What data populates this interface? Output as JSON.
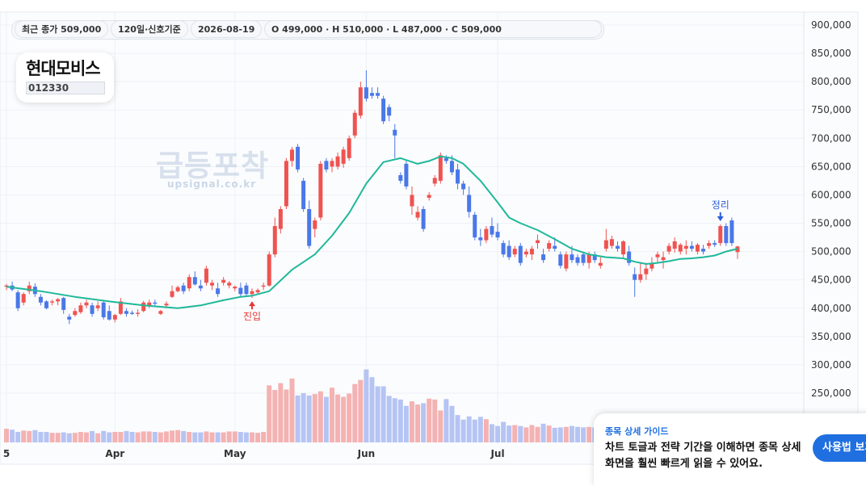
{
  "header": {
    "last_close": "최근 종가 509,000",
    "period": "120일·신호기준",
    "date": "2026-08-19",
    "ohlc": "O 499,000 · H 510,000 · L 487,000 · C 509,000"
  },
  "stock": {
    "name": "현대모비스",
    "code": "012330"
  },
  "watermark": {
    "title": "급등포착",
    "url": "upsignal.co.kr"
  },
  "guide": {
    "title": "종목 상세 가이드",
    "text": "차트 토글과 전략 기간을 이해하면 종목 상세 화면을 훨씬 빠르게 읽을 수 있어요.",
    "button_label": "사용법 보기"
  },
  "colors": {
    "up": "#ef5350",
    "down": "#4a78e8",
    "ma": "#1fb89a",
    "vol_up": "#f4b2b2",
    "vol_down": "#b5c4f3",
    "entry": "#e53935",
    "exit": "#2b5fd9",
    "grid": "#eef1f5"
  },
  "chart_data": {
    "type": "candlestick",
    "y_ticks": [
      250000,
      300000,
      350000,
      400000,
      450000,
      500000,
      550000,
      600000,
      650000,
      700000,
      750000,
      800000,
      850000,
      900000
    ],
    "y_tick_labels": [
      "250,000",
      "300,000",
      "350,000",
      "400,000",
      "450,000",
      "500,000",
      "550,000",
      "600,000",
      "650,000",
      "700,000",
      "750,000",
      "800,000",
      "850,000",
      "900,000"
    ],
    "x_labels": [
      {
        "label": "5",
        "index": 0
      },
      {
        "label": "Apr",
        "index": 19
      },
      {
        "label": "May",
        "index": 40
      },
      {
        "label": "Jun",
        "index": 63
      },
      {
        "label": "Jul",
        "index": 86
      }
    ],
    "candles": [
      [
        438000,
        443000,
        432000,
        440000
      ],
      [
        440000,
        447000,
        430000,
        433000
      ],
      [
        428000,
        432000,
        395000,
        400000
      ],
      [
        410000,
        428000,
        405000,
        425000
      ],
      [
        430000,
        447000,
        425000,
        440000
      ],
      [
        438000,
        444000,
        420000,
        425000
      ],
      [
        420000,
        425000,
        405000,
        410000
      ],
      [
        412000,
        414000,
        398000,
        400000
      ],
      [
        410000,
        415000,
        405000,
        412000
      ],
      [
        412000,
        418000,
        405000,
        416000
      ],
      [
        418000,
        420000,
        390000,
        397000
      ],
      [
        385000,
        390000,
        372000,
        380000
      ],
      [
        388000,
        400000,
        385000,
        395000
      ],
      [
        393000,
        410000,
        390000,
        405000
      ],
      [
        405000,
        415000,
        400000,
        410000
      ],
      [
        405000,
        410000,
        385000,
        390000
      ],
      [
        400000,
        412000,
        395000,
        405000
      ],
      [
        410000,
        412000,
        380000,
        384000
      ],
      [
        395000,
        405000,
        378000,
        380000
      ],
      [
        380000,
        390000,
        375000,
        388000
      ],
      [
        390000,
        418000,
        388000,
        412000
      ],
      [
        395000,
        400000,
        385000,
        390000
      ],
      [
        392000,
        396000,
        388000,
        390000
      ],
      [
        390000,
        398000,
        385000,
        392000
      ],
      [
        395000,
        413000,
        393000,
        410000
      ],
      [
        405000,
        415000,
        400000,
        410000
      ],
      [
        410000,
        415000,
        405000,
        408000
      ],
      [
        390000,
        397000,
        388000,
        395000
      ],
      [
        405000,
        412000,
        400000,
        408000
      ],
      [
        420000,
        440000,
        418000,
        430000
      ],
      [
        430000,
        440000,
        428000,
        437000
      ],
      [
        440000,
        445000,
        425000,
        430000
      ],
      [
        435000,
        460000,
        430000,
        455000
      ],
      [
        455000,
        465000,
        440000,
        442000
      ],
      [
        440000,
        450000,
        430000,
        435000
      ],
      [
        445000,
        475000,
        440000,
        470000
      ],
      [
        440000,
        450000,
        432000,
        445000
      ],
      [
        435000,
        445000,
        420000,
        425000
      ],
      [
        445000,
        455000,
        440000,
        450000
      ],
      [
        440000,
        448000,
        435000,
        445000
      ],
      [
        435000,
        440000,
        430000,
        438000
      ],
      [
        436000,
        445000,
        420000,
        425000
      ],
      [
        440000,
        445000,
        420000,
        425000
      ],
      [
        425000,
        435000,
        418000,
        430000
      ],
      [
        428000,
        435000,
        425000,
        432000
      ],
      [
        438000,
        445000,
        432000,
        440000
      ],
      [
        440000,
        500000,
        438000,
        495000
      ],
      [
        495000,
        560000,
        490000,
        545000
      ],
      [
        540000,
        580000,
        532000,
        575000
      ],
      [
        580000,
        665000,
        575000,
        660000
      ],
      [
        660000,
        685000,
        650000,
        680000
      ],
      [
        685000,
        690000,
        640000,
        645000
      ],
      [
        625000,
        630000,
        570000,
        575000
      ],
      [
        575000,
        590000,
        505000,
        510000
      ],
      [
        540000,
        560000,
        525000,
        555000
      ],
      [
        560000,
        660000,
        555000,
        655000
      ],
      [
        660000,
        665000,
        640000,
        645000
      ],
      [
        650000,
        665000,
        640000,
        660000
      ],
      [
        650000,
        675000,
        645000,
        668000
      ],
      [
        655000,
        685000,
        648000,
        680000
      ],
      [
        665000,
        705000,
        660000,
        700000
      ],
      [
        705000,
        750000,
        700000,
        745000
      ],
      [
        740000,
        800000,
        735000,
        790000
      ],
      [
        790000,
        820000,
        765000,
        770000
      ],
      [
        780000,
        790000,
        770000,
        775000
      ],
      [
        780000,
        790000,
        770000,
        775000
      ],
      [
        770000,
        775000,
        725000,
        730000
      ],
      [
        755000,
        760000,
        730000,
        740000
      ],
      [
        715000,
        725000,
        665000,
        705000
      ],
      [
        635000,
        640000,
        620000,
        625000
      ],
      [
        655000,
        660000,
        610000,
        615000
      ],
      [
        580000,
        615000,
        565000,
        600000
      ],
      [
        560000,
        580000,
        555000,
        570000
      ],
      [
        575000,
        580000,
        535000,
        540000
      ],
      [
        595000,
        605000,
        590000,
        600000
      ],
      [
        620000,
        635000,
        615000,
        630000
      ],
      [
        625000,
        675000,
        620000,
        670000
      ],
      [
        665000,
        670000,
        655000,
        660000
      ],
      [
        660000,
        670000,
        635000,
        640000
      ],
      [
        645000,
        655000,
        610000,
        620000
      ],
      [
        620000,
        625000,
        600000,
        610000
      ],
      [
        600000,
        615000,
        560000,
        570000
      ],
      [
        565000,
        570000,
        520000,
        525000
      ],
      [
        525000,
        540000,
        510000,
        520000
      ],
      [
        520000,
        545000,
        515000,
        540000
      ],
      [
        545000,
        560000,
        525000,
        530000
      ],
      [
        535000,
        550000,
        520000,
        525000
      ],
      [
        515000,
        520000,
        490000,
        495000
      ],
      [
        510000,
        520000,
        485000,
        490000
      ],
      [
        495000,
        510000,
        490000,
        505000
      ],
      [
        510000,
        515000,
        475000,
        480000
      ],
      [
        495000,
        505000,
        490000,
        500000
      ],
      [
        495000,
        510000,
        485000,
        505000
      ],
      [
        515000,
        530000,
        505000,
        520000
      ],
      [
        495000,
        505000,
        480000,
        485000
      ],
      [
        505000,
        520000,
        500000,
        515000
      ],
      [
        510000,
        525000,
        500000,
        505000
      ],
      [
        495000,
        500000,
        470000,
        475000
      ],
      [
        470000,
        500000,
        465000,
        495000
      ],
      [
        495000,
        510000,
        480000,
        485000
      ],
      [
        490000,
        495000,
        475000,
        480000
      ],
      [
        495000,
        500000,
        475000,
        480000
      ],
      [
        480000,
        500000,
        470000,
        495000
      ],
      [
        495000,
        500000,
        480000,
        485000
      ],
      [
        475000,
        490000,
        470000,
        480000
      ],
      [
        505000,
        540000,
        500000,
        520000
      ],
      [
        510000,
        528000,
        505000,
        522000
      ],
      [
        510000,
        518000,
        500000,
        505000
      ],
      [
        495000,
        520000,
        490000,
        518000
      ],
      [
        500000,
        510000,
        475000,
        480000
      ],
      [
        460000,
        472000,
        420000,
        450000
      ],
      [
        450000,
        480000,
        445000,
        460000
      ],
      [
        460000,
        480000,
        450000,
        470000
      ],
      [
        470000,
        490000,
        465000,
        478000
      ],
      [
        490000,
        500000,
        480000,
        495000
      ],
      [
        485000,
        500000,
        470000,
        490000
      ],
      [
        500000,
        515000,
        495000,
        510000
      ],
      [
        505000,
        525000,
        498000,
        518000
      ],
      [
        500000,
        515000,
        495000,
        512000
      ],
      [
        505000,
        520000,
        495000,
        510000
      ],
      [
        510000,
        518000,
        500000,
        505000
      ],
      [
        500000,
        515000,
        495000,
        512000
      ],
      [
        505000,
        512000,
        495000,
        500000
      ],
      [
        510000,
        520000,
        505000,
        515000
      ],
      [
        515000,
        520000,
        508000,
        512000
      ],
      [
        515000,
        548000,
        510000,
        545000
      ],
      [
        545000,
        550000,
        510000,
        515000
      ],
      [
        555000,
        560000,
        510000,
        515000
      ],
      [
        499000,
        510000,
        487000,
        509000
      ]
    ],
    "ma": [
      [
        0,
        438000
      ],
      [
        6,
        430000
      ],
      [
        12,
        420000
      ],
      [
        18,
        412000
      ],
      [
        24,
        405000
      ],
      [
        30,
        400000
      ],
      [
        34,
        405000
      ],
      [
        38,
        414000
      ],
      [
        41,
        420000
      ],
      [
        43,
        422000
      ],
      [
        46,
        430000
      ],
      [
        50,
        468000
      ],
      [
        54,
        495000
      ],
      [
        57,
        528000
      ],
      [
        60,
        568000
      ],
      [
        63,
        620000
      ],
      [
        66,
        658000
      ],
      [
        69,
        665000
      ],
      [
        72,
        655000
      ],
      [
        74,
        660000
      ],
      [
        76,
        668000
      ],
      [
        78,
        665000
      ],
      [
        80,
        655000
      ],
      [
        83,
        625000
      ],
      [
        86,
        587000
      ],
      [
        88,
        560000
      ],
      [
        90,
        550000
      ],
      [
        93,
        538000
      ],
      [
        96,
        522000
      ],
      [
        99,
        505000
      ],
      [
        102,
        495000
      ],
      [
        105,
        490000
      ],
      [
        108,
        488000
      ],
      [
        110,
        482000
      ],
      [
        112,
        478000
      ],
      [
        114,
        480000
      ],
      [
        116,
        483000
      ],
      [
        118,
        487000
      ],
      [
        120,
        488000
      ],
      [
        122,
        490000
      ],
      [
        124,
        493000
      ],
      [
        126,
        500000
      ],
      [
        128,
        505000
      ]
    ],
    "volumes": [
      30,
      28,
      23,
      26,
      25,
      27,
      23,
      23,
      21,
      21,
      22,
      20,
      21,
      23,
      22,
      25,
      20,
      25,
      22,
      23,
      23,
      25,
      23,
      22,
      24,
      24,
      23,
      22,
      24,
      26,
      27,
      25,
      23,
      22,
      22,
      24,
      22,
      22,
      22,
      24,
      24,
      23,
      22,
      22,
      21,
      23,
      125,
      115,
      130,
      116,
      140,
      103,
      108,
      103,
      106,
      112,
      100,
      120,
      105,
      100,
      107,
      128,
      137,
      160,
      143,
      123,
      123,
      102,
      97,
      94,
      80,
      90,
      83,
      86,
      96,
      94,
      70,
      95,
      80,
      60,
      50,
      57,
      50,
      56,
      51,
      40,
      36,
      45,
      37,
      38,
      36,
      33,
      38,
      34,
      41,
      37,
      32,
      33,
      34,
      36,
      34,
      33,
      34,
      33,
      32,
      33,
      35,
      37,
      36,
      33,
      35,
      35,
      36,
      32,
      37,
      37,
      38,
      40,
      38,
      35,
      36,
      33,
      38,
      35,
      36,
      32,
      30,
      32,
      40
    ],
    "signals": [
      {
        "index": 43,
        "label": "진입",
        "type": "entry"
      },
      {
        "index": 125,
        "label": "정리",
        "type": "exit"
      }
    ]
  }
}
